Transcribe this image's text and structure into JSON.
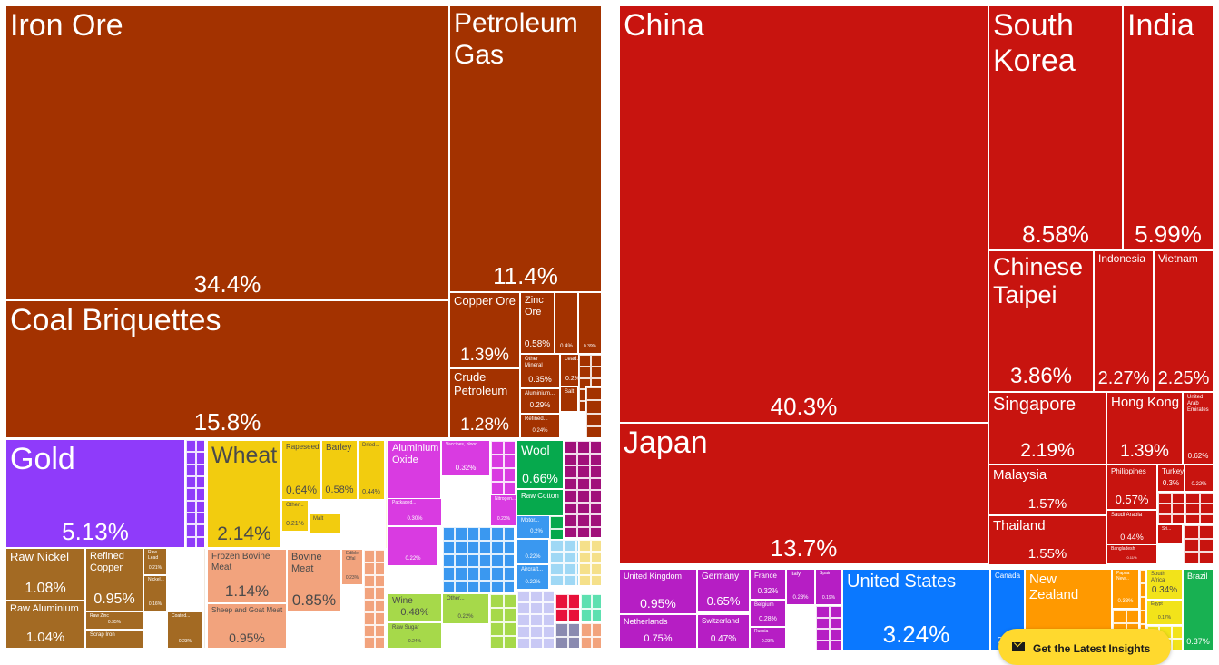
{
  "colors": {
    "minerals": "#a33200",
    "metals": "#a36a23",
    "gold": "#8f3bfa",
    "vegetable": "#f2cc0f",
    "animal": "#f2a37d",
    "chemicals": "#d93be1",
    "textiles": "#06a94d",
    "foodstuffs": "#a6d94a",
    "machines": "#3a98f0",
    "asia": "#c8140f",
    "europe": "#b61ec4",
    "north_america": "#0a78ff",
    "oceania": "#ff9900",
    "africa": "#f2e31a",
    "south_america": "#18b152"
  },
  "chart_data": [
    {
      "type": "treemap",
      "title": "",
      "items": [
        {
          "label": "Iron Ore",
          "value": 34.4,
          "display": "34.4%",
          "group": "minerals"
        },
        {
          "label": "Coal Briquettes",
          "value": 15.8,
          "display": "15.8%",
          "group": "minerals"
        },
        {
          "label": "Petroleum Gas",
          "value": 11.4,
          "display": "11.4%",
          "group": "minerals"
        },
        {
          "label": "Copper Ore",
          "value": 1.39,
          "display": "1.39%",
          "group": "minerals"
        },
        {
          "label": "Crude Petroleum",
          "value": 1.28,
          "display": "1.28%",
          "group": "minerals"
        },
        {
          "label": "Zinc Ore",
          "value": 0.58,
          "display": "0.58%",
          "group": "minerals"
        },
        {
          "label": "Other Mineral",
          "value": 0.35,
          "display": "0.35%",
          "group": "minerals"
        },
        {
          "label": "Aluminium...",
          "value": 0.29,
          "display": "0.29%",
          "group": "minerals"
        },
        {
          "label": "Refined...",
          "value": 0.24,
          "display": "0.24%",
          "group": "minerals"
        },
        {
          "label": "",
          "value": 0.4,
          "display": "0.4%",
          "group": "minerals"
        },
        {
          "label": "",
          "value": 0.39,
          "display": "0.39%",
          "group": "minerals"
        },
        {
          "label": "Lead...",
          "value": 0.2,
          "display": "0.2%",
          "group": "minerals"
        },
        {
          "label": "Salt",
          "value": 0.15,
          "display": "",
          "group": "minerals"
        },
        {
          "label": "Gold",
          "value": 5.13,
          "display": "5.13%",
          "group": "gold"
        },
        {
          "label": "Raw Nickel",
          "value": 1.08,
          "display": "1.08%",
          "group": "metals"
        },
        {
          "label": "Raw Aluminium",
          "value": 1.04,
          "display": "1.04%",
          "group": "metals"
        },
        {
          "label": "Refined Copper",
          "value": 0.95,
          "display": "0.95%",
          "group": "metals"
        },
        {
          "label": "Raw Lead",
          "value": 0.21,
          "display": "0.21%",
          "group": "metals"
        },
        {
          "label": "Nickel...",
          "value": 0.16,
          "display": "0.16%",
          "group": "metals"
        },
        {
          "label": "Raw Zinc",
          "value": 0.35,
          "display": "0.35%",
          "group": "metals"
        },
        {
          "label": "Coated...",
          "value": 0.23,
          "display": "0.23%",
          "group": "metals"
        },
        {
          "label": "Scrap Iron",
          "value": 0.2,
          "display": "",
          "group": "metals"
        },
        {
          "label": "Wheat",
          "value": 2.14,
          "display": "2.14%",
          "group": "vegetable"
        },
        {
          "label": "Rapeseed",
          "value": 0.64,
          "display": "0.64%",
          "group": "vegetable"
        },
        {
          "label": "Barley",
          "value": 0.58,
          "display": "0.58%",
          "group": "vegetable"
        },
        {
          "label": "Dried...",
          "value": 0.44,
          "display": "0.44%",
          "group": "vegetable"
        },
        {
          "label": "Other...",
          "value": 0.21,
          "display": "0.21%",
          "group": "vegetable"
        },
        {
          "label": "Malt",
          "value": 0.15,
          "display": "",
          "group": "vegetable"
        },
        {
          "label": "Frozen Bovine Meat",
          "value": 1.14,
          "display": "1.14%",
          "group": "animal"
        },
        {
          "label": "Bovine Meat",
          "value": 0.85,
          "display": "0.85%",
          "group": "animal"
        },
        {
          "label": "Sheep and Goat Meat",
          "value": 0.95,
          "display": "0.95%",
          "group": "animal"
        },
        {
          "label": "Edible Offal",
          "value": 0.23,
          "display": "0.23%",
          "group": "animal"
        },
        {
          "label": "Aluminium Oxide",
          "value": 0.86,
          "display": "0.86%",
          "group": "chemicals"
        },
        {
          "label": "Vaccines, blood...",
          "value": 0.32,
          "display": "0.32%",
          "group": "chemicals"
        },
        {
          "label": "Packaged...",
          "value": 0.3,
          "display": "0.30%",
          "group": "chemicals"
        },
        {
          "label": "Nitrogen...",
          "value": 0.23,
          "display": "0.23%",
          "group": "chemicals"
        },
        {
          "label": "",
          "value": 0.22,
          "display": "0.22%",
          "group": "chemicals"
        },
        {
          "label": "Wool",
          "value": 0.66,
          "display": "0.66%",
          "group": "textiles"
        },
        {
          "label": "Raw Cotton",
          "value": 0.41,
          "display": "0.41%",
          "group": "textiles"
        },
        {
          "label": "",
          "value": 0.22,
          "display": "0.22%",
          "group": "machines"
        },
        {
          "label": "Aircraft...",
          "value": 0.22,
          "display": "0.22%",
          "group": "machines"
        },
        {
          "label": "Motor...",
          "value": 0.2,
          "display": "0.2%",
          "group": "machines"
        },
        {
          "label": "Wine",
          "value": 0.48,
          "display": "0.48%",
          "group": "foodstuffs"
        },
        {
          "label": "Other...",
          "value": 0.22,
          "display": "0.22%",
          "group": "foodstuffs"
        },
        {
          "label": "Raw Sugar",
          "value": 0.24,
          "display": "0.24%",
          "group": "foodstuffs"
        }
      ]
    },
    {
      "type": "treemap",
      "title": "",
      "items": [
        {
          "label": "China",
          "value": 40.3,
          "display": "40.3%",
          "group": "asia"
        },
        {
          "label": "Japan",
          "value": 13.7,
          "display": "13.7%",
          "group": "asia"
        },
        {
          "label": "South Korea",
          "value": 8.58,
          "display": "8.58%",
          "group": "asia"
        },
        {
          "label": "India",
          "value": 5.99,
          "display": "5.99%",
          "group": "asia"
        },
        {
          "label": "Chinese Taipei",
          "value": 3.86,
          "display": "3.86%",
          "group": "asia"
        },
        {
          "label": "Indonesia",
          "value": 2.27,
          "display": "2.27%",
          "group": "asia"
        },
        {
          "label": "Vietnam",
          "value": 2.25,
          "display": "2.25%",
          "group": "asia"
        },
        {
          "label": "Singapore",
          "value": 2.19,
          "display": "2.19%",
          "group": "asia"
        },
        {
          "label": "Hong Kong",
          "value": 1.39,
          "display": "1.39%",
          "group": "asia"
        },
        {
          "label": "United Arab Emirates",
          "value": 0.62,
          "display": "0.62%",
          "group": "asia"
        },
        {
          "label": "Malaysia",
          "value": 1.57,
          "display": "1.57%",
          "group": "asia"
        },
        {
          "label": "Thailand",
          "value": 1.55,
          "display": "1.55%",
          "group": "asia"
        },
        {
          "label": "Philippines",
          "value": 0.57,
          "display": "0.57%",
          "group": "asia"
        },
        {
          "label": "Turkey",
          "value": 0.3,
          "display": "0.3%",
          "group": "asia"
        },
        {
          "label": "",
          "value": 0.22,
          "display": "0.22%",
          "group": "asia"
        },
        {
          "label": "Saudi Arabia",
          "value": 0.44,
          "display": "0.44%",
          "group": "asia"
        },
        {
          "label": "Bangladesh",
          "value": 0.11,
          "display": "0.11%",
          "group": "asia"
        },
        {
          "label": "Sri...",
          "value": 0.1,
          "display": "",
          "group": "asia"
        },
        {
          "label": "United Kingdom",
          "value": 0.95,
          "display": "0.95%",
          "group": "europe"
        },
        {
          "label": "Netherlands",
          "value": 0.75,
          "display": "0.75%",
          "group": "europe"
        },
        {
          "label": "Germany",
          "value": 0.65,
          "display": "0.65%",
          "group": "europe"
        },
        {
          "label": "Switzerland",
          "value": 0.47,
          "display": "0.47%",
          "group": "europe"
        },
        {
          "label": "France",
          "value": 0.32,
          "display": "0.32%",
          "group": "europe"
        },
        {
          "label": "Belgium",
          "value": 0.28,
          "display": "0.28%",
          "group": "europe"
        },
        {
          "label": "Russia",
          "value": 0.23,
          "display": "0.23%",
          "group": "europe"
        },
        {
          "label": "Italy",
          "value": 0.23,
          "display": "0.23%",
          "group": "europe"
        },
        {
          "label": "Spain",
          "value": 0.19,
          "display": "0.19%",
          "group": "europe"
        },
        {
          "label": "United States",
          "value": 3.24,
          "display": "3.24%",
          "group": "north_america"
        },
        {
          "label": "Canada",
          "value": 0.5,
          "display": "0.5%",
          "group": "north_america"
        },
        {
          "label": "New Zealand",
          "value": 1.95,
          "display": "1.95%",
          "group": "oceania"
        },
        {
          "label": "Papua New...",
          "value": 0.33,
          "display": "0.33%",
          "group": "oceania"
        },
        {
          "label": "South Africa",
          "value": 0.34,
          "display": "0.34%",
          "group": "africa"
        },
        {
          "label": "Egypt",
          "value": 0.17,
          "display": "0.17%",
          "group": "africa"
        },
        {
          "label": "Brazil",
          "value": 0.37,
          "display": "0.37%",
          "group": "south_america"
        }
      ]
    }
  ],
  "cta": {
    "label": "Get the Latest Insights",
    "icon": "mail-icon"
  }
}
